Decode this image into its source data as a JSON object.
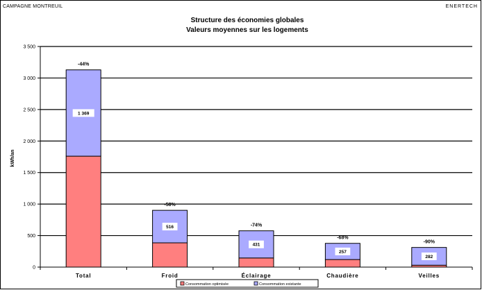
{
  "header": {
    "left": "CAMPAGNE MONTREUIL",
    "right": "ENERTECH"
  },
  "chart_data": {
    "type": "bar",
    "stacked": true,
    "title": "Structure des économies globales",
    "subtitle": "Valeurs moyennes sur les logements",
    "xlabel": "",
    "ylabel": "kWh/an",
    "ylim": [
      0,
      3500
    ],
    "ytick_values": [
      0,
      500,
      1000,
      1500,
      2000,
      2500,
      3000,
      3500
    ],
    "ytick_labels": [
      "0",
      "500",
      "1 000",
      "1 500",
      "2 000",
      "2 500",
      "3 000",
      "3 500"
    ],
    "grid": true,
    "legend_position": "bottom",
    "categories": [
      "Total",
      "Froid",
      "Éclairage",
      "Chaudière",
      "Veilles"
    ],
    "series": [
      {
        "name": "Consommation optimisée",
        "color": "#ff7f7f",
        "values": [
          1760,
          385,
          145,
          120,
          30
        ]
      },
      {
        "name": "Consommation existante",
        "color": "#aaaaff",
        "values": [
          1369,
          516,
          431,
          257,
          282
        ]
      }
    ],
    "segment_labels": [
      "1 369",
      "516",
      "431",
      "257",
      "282"
    ],
    "annotations": [
      "-44%",
      "-58%",
      "-74%",
      "-68%",
      "-90%"
    ]
  }
}
